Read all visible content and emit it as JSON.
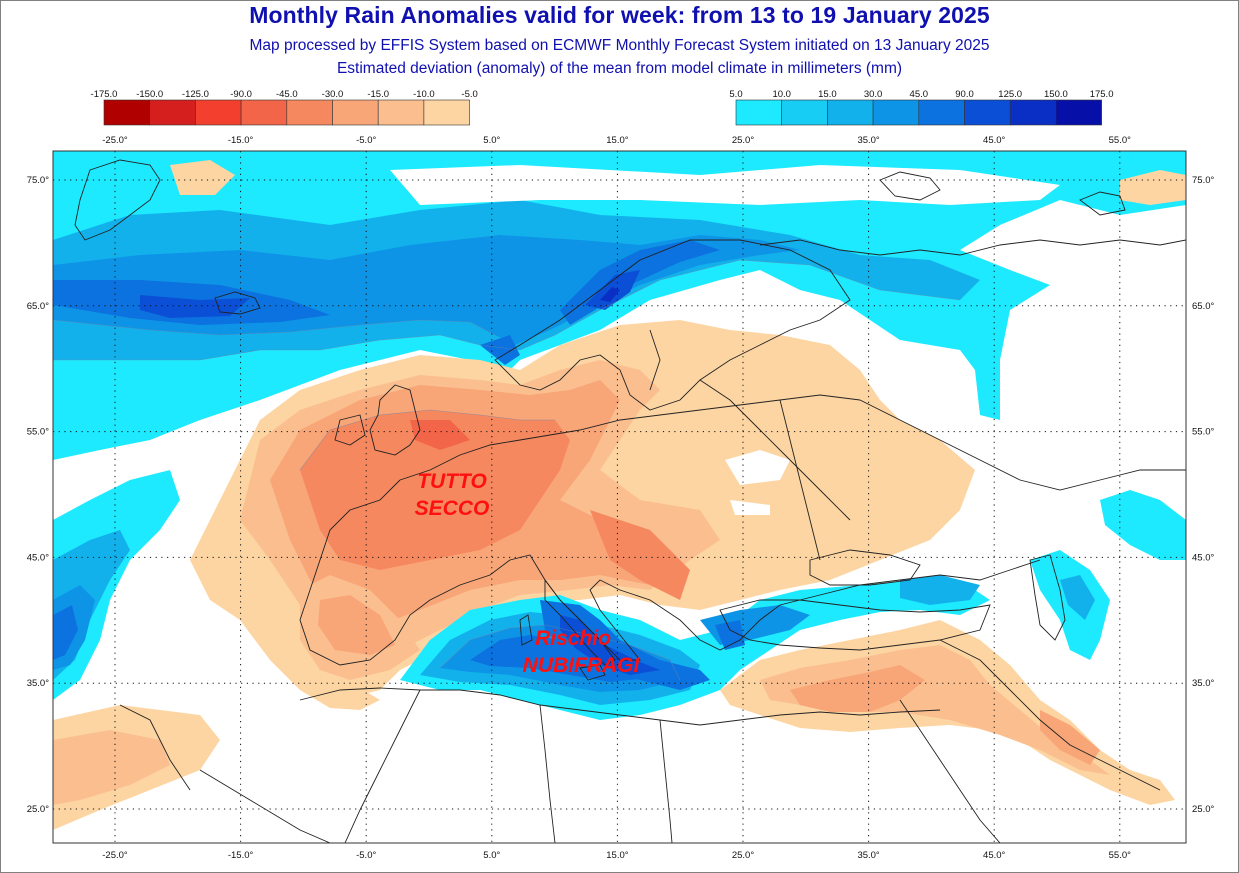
{
  "header": {
    "title": "Monthly Rain Anomalies valid for week: from 13 to 19 January 2025",
    "subtitle_1": "Map processed by EFFIS System based on ECMWF Monthly Forecast System initiated on 13 January 2025",
    "subtitle_2": "Estimated deviation (anomaly) of the mean from model climate in millimeters (mm)"
  },
  "legend_negative": {
    "labels": [
      "-175.0",
      "-150.0",
      "-125.0",
      "-90.0",
      "-45.0",
      "-30.0",
      "-15.0",
      "-10.0",
      "-5.0"
    ],
    "colors": [
      "#b00000",
      "#d51f1f",
      "#f3402e",
      "#f26548",
      "#f5885f",
      "#f8a578",
      "#fbbe8f",
      "#fdd5a2"
    ]
  },
  "legend_positive": {
    "labels": [
      "5.0",
      "10.0",
      "15.0",
      "30.0",
      "45.0",
      "90.0",
      "125.0",
      "150.0",
      "175.0"
    ],
    "colors": [
      "#1de9ff",
      "#18cdf3",
      "#12b1ec",
      "#0e94e6",
      "#0b72e0",
      "#0b4fd6",
      "#0a2fc4",
      "#0610a8"
    ]
  },
  "longitude_labels": [
    "-25.0°",
    "-15.0°",
    "-5.0°",
    "5.0°",
    "15.0°",
    "25.0°",
    "35.0°",
    "45.0°",
    "55.0°"
  ],
  "latitude_labels": [
    "75.0°",
    "65.0°",
    "55.0°",
    "45.0°",
    "35.0°",
    "25.0°"
  ],
  "annotations": {
    "dry_line1": "TUTTO",
    "dry_line2": "SECCO",
    "storm_line1": "Rischio",
    "storm_line2": "NUBIFRAGI"
  }
}
